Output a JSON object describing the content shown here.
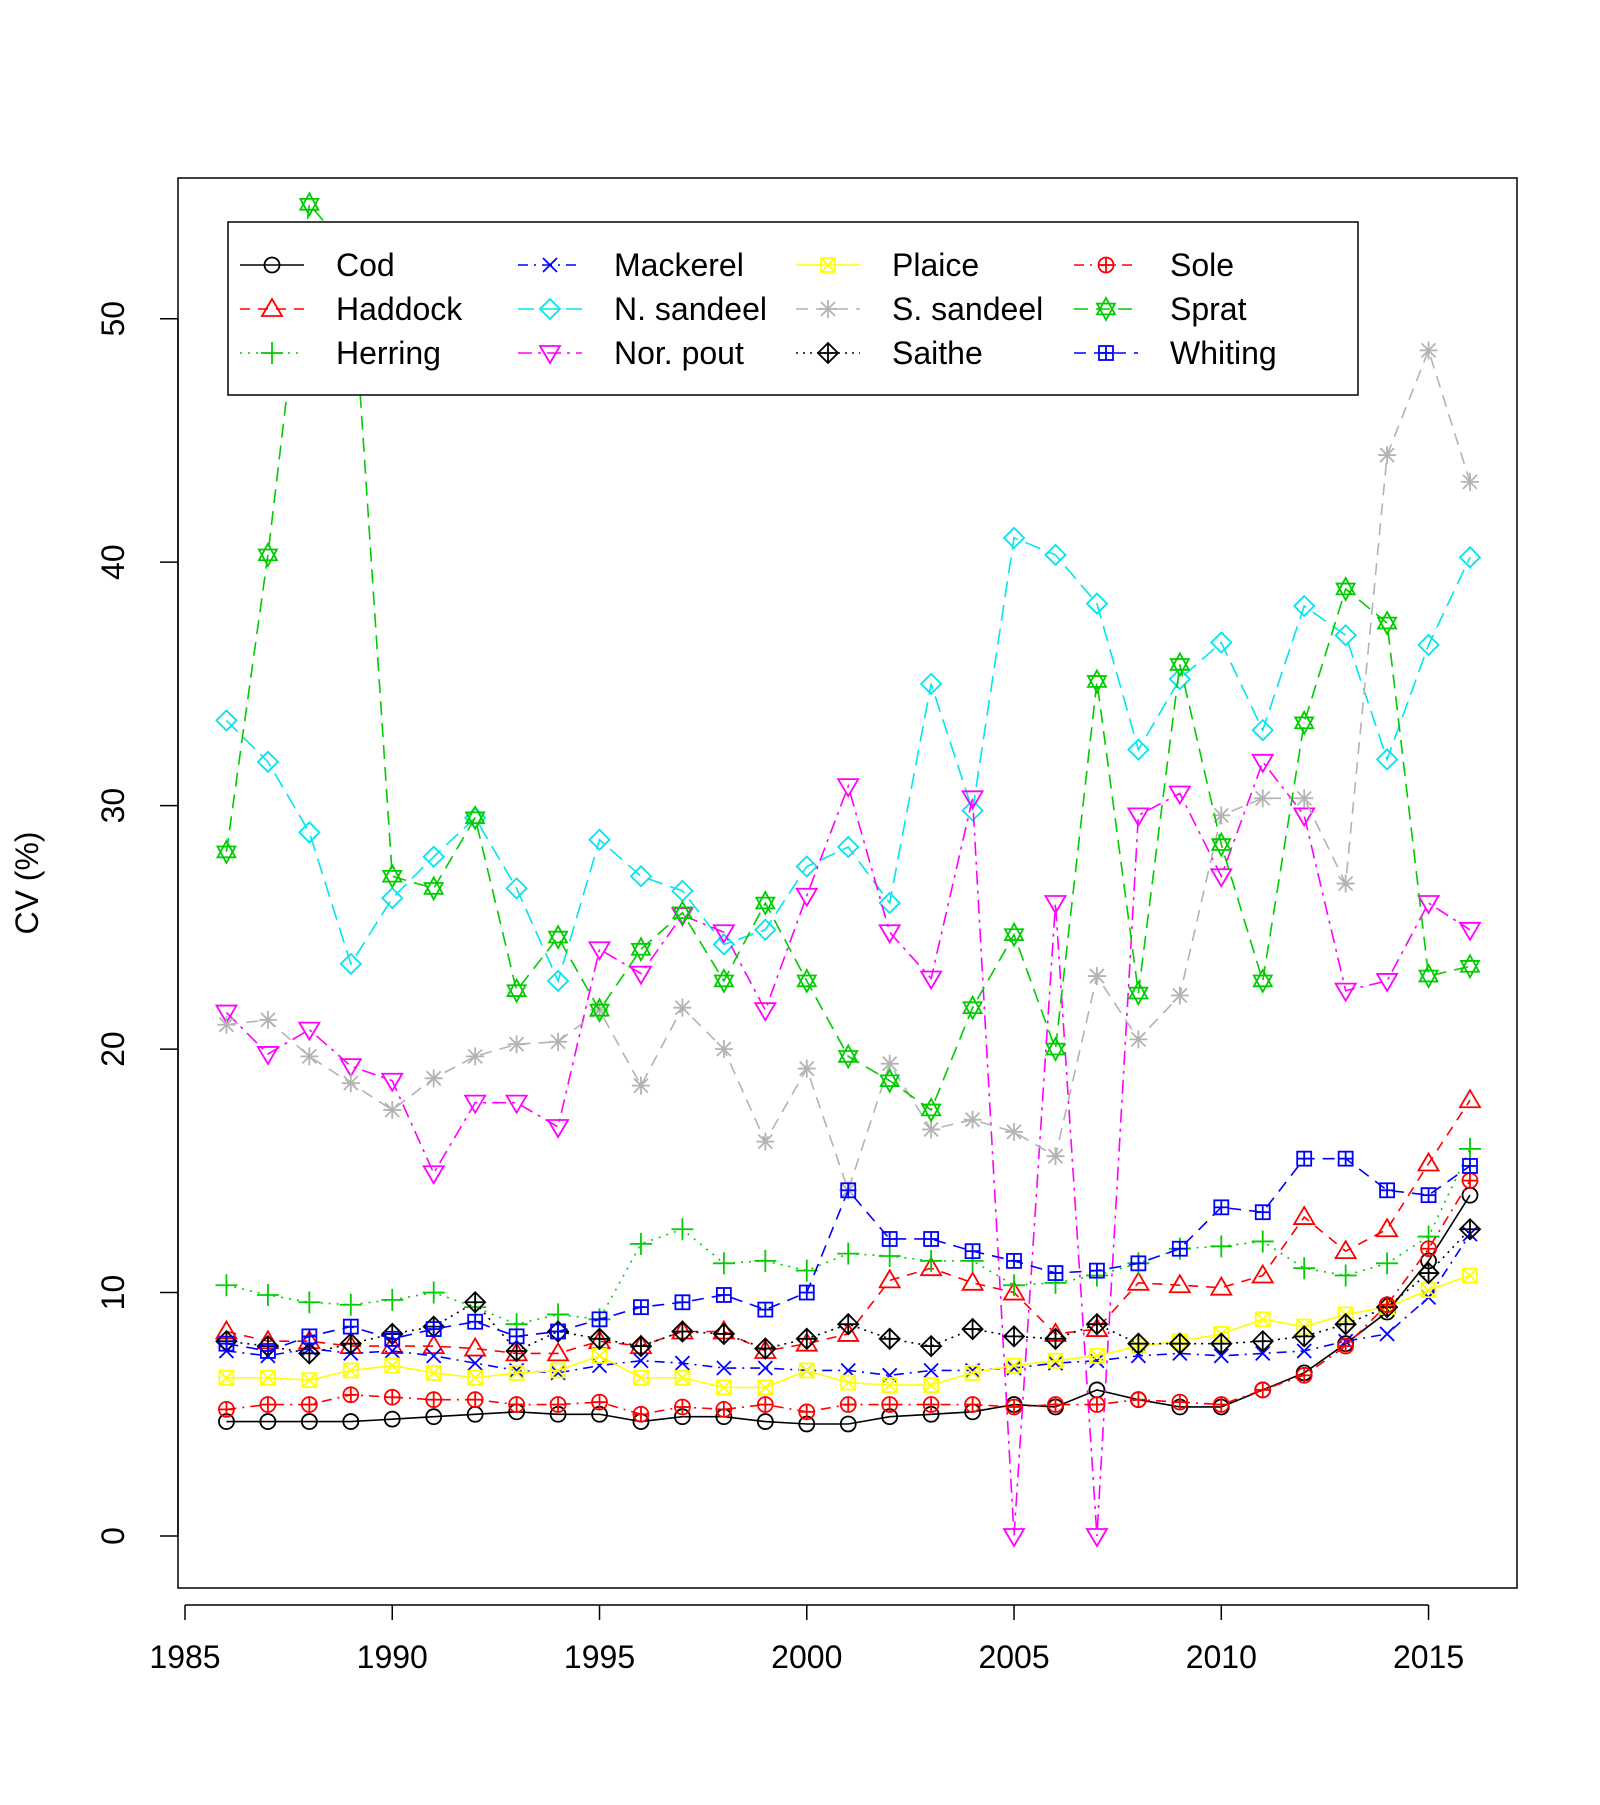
{
  "chart_data": {
    "type": "line",
    "title": "",
    "xlabel": "",
    "ylabel": "CV (%)",
    "xlim": [
      1985,
      2016
    ],
    "ylim": [
      0,
      55
    ],
    "x_ticks": [
      1985,
      1990,
      1995,
      2000,
      2005,
      2010,
      2015
    ],
    "y_ticks": [
      0,
      10,
      20,
      30,
      40,
      50
    ],
    "grid": false,
    "legend": "top-left",
    "x": [
      1986,
      1987,
      1988,
      1989,
      1990,
      1991,
      1992,
      1993,
      1994,
      1995,
      1996,
      1997,
      1998,
      1999,
      2000,
      2001,
      2002,
      2003,
      2004,
      2005,
      2006,
      2007,
      2008,
      2009,
      2010,
      2011,
      2012,
      2013,
      2014,
      2015,
      2016
    ],
    "series": [
      {
        "name": "Cod",
        "color": "#000000",
        "dash": "",
        "symbol": "circle",
        "values": [
          4.7,
          4.7,
          4.7,
          4.7,
          4.8,
          4.9,
          5.0,
          5.1,
          5.0,
          5.0,
          4.7,
          4.9,
          4.9,
          4.7,
          4.6,
          4.6,
          4.9,
          5.0,
          5.1,
          5.4,
          5.3,
          6.0,
          5.6,
          5.3,
          5.3,
          6.0,
          6.7,
          7.9,
          9.2,
          11.3,
          14.0
        ]
      },
      {
        "name": "Haddock",
        "color": "#ff0000",
        "dash": "10,8",
        "symbol": "triangle",
        "values": [
          8.4,
          8.0,
          8.0,
          7.8,
          7.8,
          7.8,
          7.7,
          7.5,
          7.5,
          8.0,
          7.8,
          8.4,
          8.4,
          7.6,
          7.9,
          8.3,
          10.5,
          11.0,
          10.4,
          10.0,
          8.3,
          8.5,
          10.4,
          10.3,
          10.2,
          10.7,
          13.1,
          11.7,
          12.6,
          15.3,
          17.9
        ]
      },
      {
        "name": "Herring",
        "color": "#00cc00",
        "dash": "2,6",
        "symbol": "plus",
        "values": [
          10.3,
          9.9,
          9.6,
          9.5,
          9.7,
          10.0,
          9.4,
          8.7,
          9.1,
          8.9,
          12.0,
          12.6,
          11.2,
          11.3,
          10.9,
          11.6,
          11.5,
          11.3,
          11.3,
          10.3,
          10.4,
          10.7,
          11.2,
          11.8,
          11.9,
          12.1,
          11.0,
          10.7,
          11.2,
          12.3,
          15.9
        ]
      },
      {
        "name": "Mackerel",
        "color": "#0000ff",
        "dash": "10,6,2,6",
        "symbol": "cross",
        "values": [
          7.6,
          7.4,
          7.7,
          7.5,
          7.6,
          7.4,
          7.1,
          6.8,
          6.7,
          7.0,
          7.2,
          7.1,
          6.9,
          6.9,
          6.8,
          6.8,
          6.6,
          6.8,
          6.8,
          6.9,
          7.1,
          7.2,
          7.4,
          7.5,
          7.4,
          7.5,
          7.6,
          8.0,
          8.3,
          9.8,
          12.4
        ]
      },
      {
        "name": "N. sandeel",
        "color": "#00e5ee",
        "dash": "16,8",
        "symbol": "diamond",
        "values": [
          33.5,
          31.8,
          28.9,
          23.5,
          26.2,
          27.9,
          29.5,
          26.6,
          22.8,
          28.6,
          27.1,
          26.5,
          24.3,
          24.9,
          27.5,
          28.3,
          26.0,
          35.0,
          29.8,
          41.0,
          40.3,
          38.3,
          32.3,
          35.2,
          36.7,
          33.1,
          38.2,
          37.0,
          31.9,
          36.6,
          40.2
        ]
      },
      {
        "name": "Nor. pout",
        "color": "#ff00ff",
        "dash": "14,6,3,6",
        "symbol": "triangle-down",
        "values": [
          21.5,
          19.8,
          20.8,
          19.3,
          18.7,
          14.9,
          17.8,
          17.8,
          16.8,
          24.1,
          23.1,
          25.5,
          24.8,
          21.6,
          26.3,
          30.8,
          24.8,
          22.9,
          30.3,
          0.0,
          26.0,
          0.0,
          29.6,
          30.5,
          27.1,
          31.8,
          29.6,
          22.4,
          22.8,
          26.0,
          24.9
        ]
      },
      {
        "name": "Plaice",
        "color": "#ffff00",
        "dash": "",
        "symbol": "square-x",
        "values": [
          6.5,
          6.5,
          6.4,
          6.8,
          7.0,
          6.7,
          6.5,
          6.7,
          6.8,
          7.4,
          6.5,
          6.5,
          6.1,
          6.1,
          6.8,
          6.3,
          6.2,
          6.2,
          6.7,
          7.0,
          7.2,
          7.4,
          7.8,
          8.0,
          8.3,
          8.9,
          8.6,
          9.1,
          9.4,
          10.1,
          10.7
        ]
      },
      {
        "name": "S. sandeel",
        "color": "#b3b3b3",
        "dash": "12,8",
        "symbol": "asterisk",
        "values": [
          21.0,
          21.2,
          19.7,
          18.6,
          17.5,
          18.8,
          19.7,
          20.2,
          20.3,
          21.6,
          18.5,
          21.7,
          20.0,
          16.2,
          19.2,
          14.2,
          19.4,
          16.7,
          17.1,
          16.6,
          15.6,
          23.0,
          20.4,
          22.2,
          29.6,
          30.3,
          30.3,
          26.8,
          44.4,
          48.7,
          43.3
        ]
      },
      {
        "name": "Saithe",
        "color": "#000000",
        "dash": "2,5",
        "symbol": "diamond-plus",
        "values": [
          8.0,
          7.8,
          7.5,
          7.9,
          8.3,
          8.6,
          9.6,
          7.6,
          8.4,
          8.1,
          7.8,
          8.4,
          8.3,
          7.7,
          8.1,
          8.7,
          8.1,
          7.8,
          8.5,
          8.2,
          8.1,
          8.7,
          7.9,
          7.9,
          7.9,
          8.0,
          8.2,
          8.7,
          9.4,
          10.8,
          12.6
        ]
      },
      {
        "name": "Sole",
        "color": "#ff0000",
        "dash": "10,6,2,6",
        "symbol": "circle-plus",
        "values": [
          5.2,
          5.4,
          5.4,
          5.8,
          5.7,
          5.6,
          5.6,
          5.4,
          5.4,
          5.5,
          5.0,
          5.3,
          5.2,
          5.4,
          5.1,
          5.4,
          5.4,
          5.4,
          5.4,
          5.3,
          5.4,
          5.4,
          5.6,
          5.5,
          5.4,
          6.0,
          6.6,
          7.8,
          9.5,
          11.8,
          14.6
        ]
      },
      {
        "name": "Sprat",
        "color": "#00cc00",
        "dash": "14,8",
        "symbol": "hexagram",
        "values": [
          28.1,
          40.3,
          54.7,
          52.7,
          27.1,
          26.6,
          29.5,
          22.4,
          24.6,
          21.6,
          24.1,
          25.6,
          22.8,
          26.0,
          22.8,
          19.7,
          18.7,
          17.5,
          21.7,
          24.7,
          20.0,
          35.1,
          22.3,
          35.8,
          28.4,
          22.8,
          33.4,
          38.9,
          37.5,
          23.0,
          23.4
        ]
      },
      {
        "name": "Whiting",
        "color": "#0000ff",
        "dash": "12,8",
        "symbol": "square-plus",
        "values": [
          7.9,
          7.6,
          8.2,
          8.6,
          8.1,
          8.5,
          8.8,
          8.2,
          8.4,
          8.9,
          9.4,
          9.6,
          9.9,
          9.3,
          10.0,
          14.2,
          12.2,
          12.2,
          11.7,
          11.3,
          10.8,
          10.9,
          11.2,
          11.8,
          13.5,
          13.3,
          15.5,
          15.5,
          14.2,
          14.0,
          15.2
        ]
      }
    ]
  }
}
